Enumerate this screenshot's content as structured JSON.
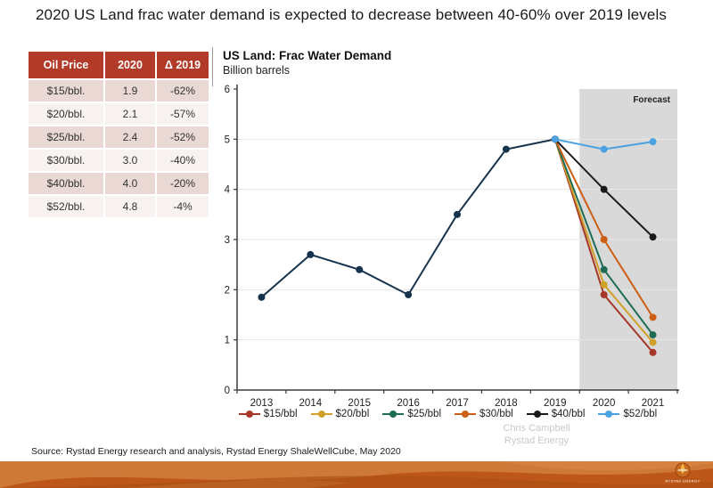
{
  "slide": {
    "title": "2020 US Land frac water demand is expected to decrease between 40-60% over 2019 levels",
    "source": "Source: Rystad Energy research and analysis, Rystad Energy ShaleWellCube, May 2020",
    "watermark": [
      "Chris Campbell",
      "Rystad Energy"
    ],
    "footer_logo_text": "RYSTAD ENERGY"
  },
  "table": {
    "headers": [
      "Oil Price",
      "2020",
      "Δ 2019"
    ],
    "rows": [
      [
        "$15/bbl.",
        "1.9",
        "-62%"
      ],
      [
        "$20/bbl.",
        "2.1",
        "-57%"
      ],
      [
        "$25/bbl.",
        "2.4",
        "-52%"
      ],
      [
        "$30/bbl.",
        "3.0",
        "-40%"
      ],
      [
        "$40/bbl.",
        "4.0",
        "-20%"
      ],
      [
        "$52/bbl.",
        "4.8",
        "-4%"
      ]
    ]
  },
  "chart_data": {
    "type": "line",
    "title": "US Land: Frac Water Demand",
    "subtitle": "Billion barrels",
    "x": [
      2013,
      2014,
      2015,
      2016,
      2017,
      2018,
      2019,
      2020,
      2021
    ],
    "ylim": [
      0,
      6
    ],
    "yticks": [
      0,
      1,
      2,
      3,
      4,
      5,
      6
    ],
    "grid": "horizontal",
    "forecast_start_after": 2019,
    "forecast_label": "Forecast",
    "legend_position": "bottom",
    "series": [
      {
        "name": "Historical",
        "color": "#16334d",
        "in_legend": false,
        "x": [
          2013,
          2014,
          2015,
          2016,
          2017,
          2018,
          2019
        ],
        "values": [
          1.85,
          2.7,
          2.4,
          1.9,
          3.5,
          4.8,
          5.0
        ]
      },
      {
        "name": "$15/bbl",
        "color": "#a5382a",
        "in_legend": true,
        "x": [
          2019,
          2020,
          2021
        ],
        "values": [
          5.0,
          1.9,
          0.75
        ]
      },
      {
        "name": "$20/bbl",
        "color": "#cfa02a",
        "in_legend": true,
        "x": [
          2019,
          2020,
          2021
        ],
        "values": [
          5.0,
          2.1,
          0.95
        ]
      },
      {
        "name": "$25/bbl",
        "color": "#1e6c55",
        "in_legend": true,
        "x": [
          2019,
          2020,
          2021
        ],
        "values": [
          5.0,
          2.4,
          1.1
        ]
      },
      {
        "name": "$30/bbl",
        "color": "#cc5f14",
        "in_legend": true,
        "x": [
          2019,
          2020,
          2021
        ],
        "values": [
          5.0,
          3.0,
          1.45
        ]
      },
      {
        "name": "$40/bbl",
        "color": "#1a1a1a",
        "in_legend": true,
        "x": [
          2019,
          2020,
          2021
        ],
        "values": [
          5.0,
          4.0,
          3.05
        ]
      },
      {
        "name": "$52/bbl",
        "color": "#4aa3e0",
        "in_legend": true,
        "x": [
          2019,
          2020,
          2021
        ],
        "values": [
          5.0,
          4.8,
          4.95
        ]
      }
    ]
  },
  "colors": {
    "table_header_bg": "#b23a28",
    "table_row_alt": "#e9d8d3",
    "table_row_light": "#f8f3f1",
    "forecast_bg": "#d9d9d9",
    "axis": "#3a3a3a",
    "gridline": "#e7e7e7",
    "footer_base": "#bd5719",
    "footer_light": "#d27f3f",
    "footer_lighter": "#e09a5c",
    "footer_dark": "#a84c12"
  }
}
